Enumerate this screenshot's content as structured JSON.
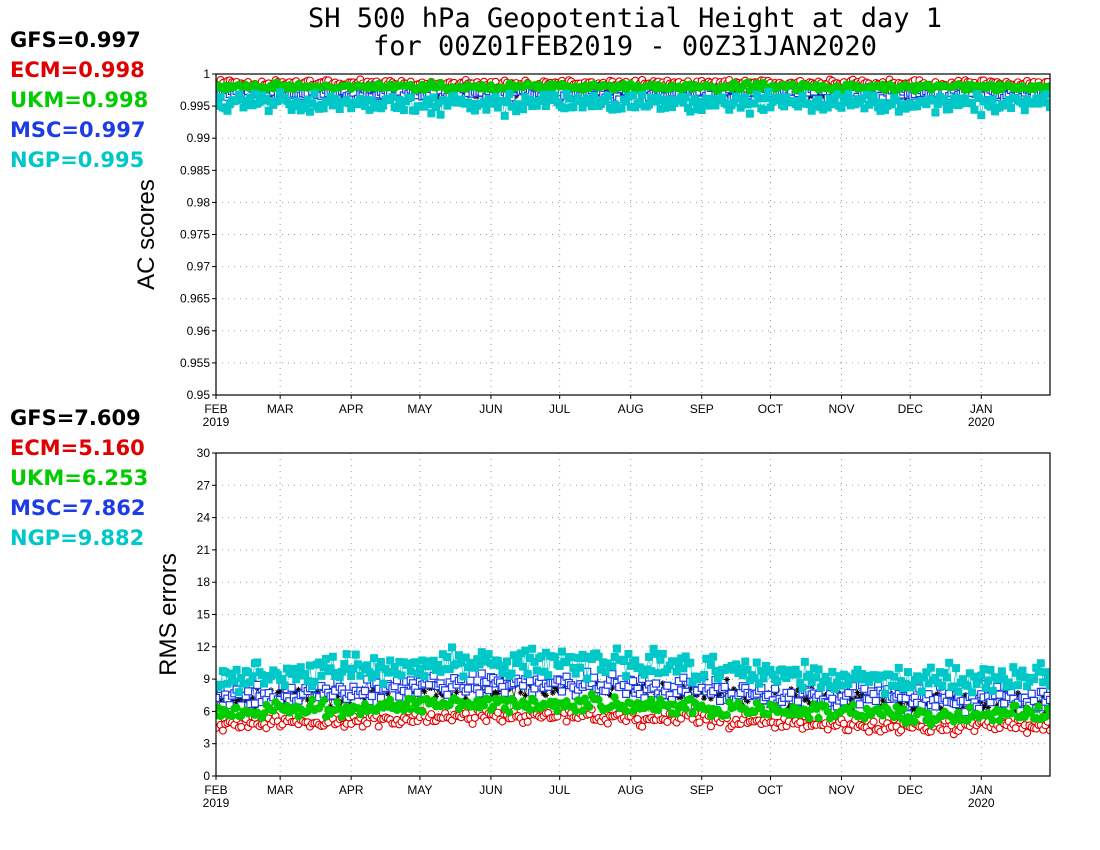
{
  "title": {
    "line1": "SH 500 hPa Geopotential Height at day 1",
    "line2": "for 00Z01FEB2019 - 00Z31JAN2020"
  },
  "colors": {
    "GFS": "#000000",
    "ECM": "#e00000",
    "UKM": "#00cc00",
    "MSC": "#1e3ce6",
    "NGP": "#00c8c8"
  },
  "chart_data": [
    {
      "type": "scatter",
      "ylabel": "AC scores",
      "xlabel": "",
      "ylim": [
        0.95,
        1.0
      ],
      "yticks": [
        "0.95",
        "0.955",
        "0.96",
        "0.965",
        "0.97",
        "0.975",
        "0.98",
        "0.985",
        "0.99",
        "0.995",
        "1"
      ],
      "x_range": [
        "2019-02-01",
        "2020-01-31"
      ],
      "xticks": [
        {
          "date": "2019-02-01",
          "label": "FEB",
          "sub": "2019"
        },
        {
          "date": "2019-03-01",
          "label": "MAR",
          "sub": ""
        },
        {
          "date": "2019-04-01",
          "label": "APR",
          "sub": ""
        },
        {
          "date": "2019-05-01",
          "label": "MAY",
          "sub": ""
        },
        {
          "date": "2019-06-01",
          "label": "JUN",
          "sub": ""
        },
        {
          "date": "2019-07-01",
          "label": "JUL",
          "sub": ""
        },
        {
          "date": "2019-08-01",
          "label": "AUG",
          "sub": ""
        },
        {
          "date": "2019-09-01",
          "label": "SEP",
          "sub": ""
        },
        {
          "date": "2019-10-01",
          "label": "OCT",
          "sub": ""
        },
        {
          "date": "2019-11-01",
          "label": "NOV",
          "sub": ""
        },
        {
          "date": "2019-12-01",
          "label": "DEC",
          "sub": ""
        },
        {
          "date": "2020-01-01",
          "label": "JAN",
          "sub": "2020"
        }
      ],
      "grid": true,
      "legend": "left",
      "series": [
        {
          "name": "GFS",
          "mean": "0.997",
          "marker": "star",
          "base": 0.997,
          "spread": 0.0006
        },
        {
          "name": "ECM",
          "mean": "0.998",
          "marker": "open-circle",
          "base": 0.9985,
          "spread": 0.0005
        },
        {
          "name": "UKM",
          "mean": "0.998",
          "marker": "filled-circle",
          "base": 0.998,
          "spread": 0.0005
        },
        {
          "name": "MSC",
          "mean": "0.997",
          "marker": "open-square",
          "base": 0.997,
          "spread": 0.0009
        },
        {
          "name": "NGP",
          "mean": "0.995",
          "marker": "filled-square",
          "base": 0.9955,
          "spread": 0.0013
        }
      ]
    },
    {
      "type": "scatter",
      "ylabel": "RMS errors",
      "xlabel": "",
      "ylim": [
        0,
        30
      ],
      "yticks": [
        "0",
        "3",
        "6",
        "9",
        "12",
        "15",
        "18",
        "21",
        "24",
        "27",
        "30"
      ],
      "x_range": [
        "2019-02-01",
        "2020-01-31"
      ],
      "xticks": [
        {
          "date": "2019-02-01",
          "label": "FEB",
          "sub": "2019"
        },
        {
          "date": "2019-03-01",
          "label": "MAR",
          "sub": ""
        },
        {
          "date": "2019-04-01",
          "label": "APR",
          "sub": ""
        },
        {
          "date": "2019-05-01",
          "label": "MAY",
          "sub": ""
        },
        {
          "date": "2019-06-01",
          "label": "JUN",
          "sub": ""
        },
        {
          "date": "2019-07-01",
          "label": "JUL",
          "sub": ""
        },
        {
          "date": "2019-08-01",
          "label": "AUG",
          "sub": ""
        },
        {
          "date": "2019-09-01",
          "label": "SEP",
          "sub": ""
        },
        {
          "date": "2019-10-01",
          "label": "OCT",
          "sub": ""
        },
        {
          "date": "2019-11-01",
          "label": "NOV",
          "sub": ""
        },
        {
          "date": "2019-12-01",
          "label": "DEC",
          "sub": ""
        },
        {
          "date": "2020-01-01",
          "label": "JAN",
          "sub": "2020"
        }
      ],
      "grid": true,
      "legend": "left",
      "series": [
        {
          "name": "GFS",
          "mean": "7.609",
          "marker": "star",
          "base": 7.6,
          "spread": 0.9
        },
        {
          "name": "ECM",
          "mean": "5.160",
          "marker": "open-circle",
          "base": 5.1,
          "spread": 0.6
        },
        {
          "name": "UKM",
          "mean": "6.253",
          "marker": "filled-circle",
          "base": 6.2,
          "spread": 0.7
        },
        {
          "name": "MSC",
          "mean": "7.862",
          "marker": "open-square",
          "base": 7.8,
          "spread": 1.0
        },
        {
          "name": "NGP",
          "mean": "9.882",
          "marker": "filled-square",
          "base": 9.7,
          "spread": 1.2
        }
      ]
    }
  ]
}
